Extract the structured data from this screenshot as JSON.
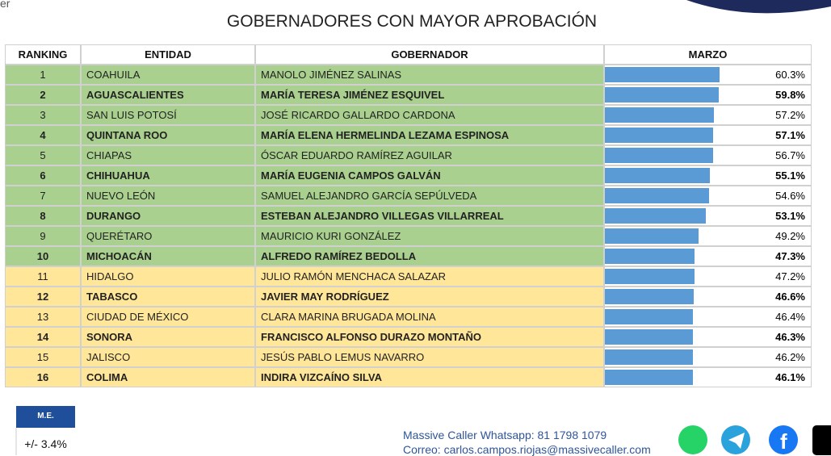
{
  "fragment": "er",
  "title": "GOBERNADORES CON MAYOR APROBACIÓN",
  "table": {
    "headers": [
      "RANKING",
      "ENTIDAD",
      "GOBERNADOR",
      "MARZO"
    ],
    "rows": [
      [
        "1",
        "COAHUILA",
        "MANOLO JIMÉNEZ SALINAS"
      ],
      [
        "2",
        "AGUASCALIENTES",
        "MARÍA TERESA JIMÉNEZ ESQUIVEL"
      ],
      [
        "3",
        "SAN LUIS POTOSÍ",
        "JOSÉ RICARDO GALLARDO CARDONA"
      ],
      [
        "4",
        "QUINTANA ROO",
        "MARÍA ELENA HERMELINDA LEZAMA ESPINOSA"
      ],
      [
        "5",
        "CHIAPAS",
        "ÓSCAR EDUARDO RAMÍREZ AGUILAR"
      ],
      [
        "6",
        "CHIHUAHUA",
        "MARÍA EUGENIA CAMPOS GALVÁN"
      ],
      [
        "7",
        "NUEVO LEÓN",
        "SAMUEL ALEJANDRO GARCÍA SEPÚLVEDA"
      ],
      [
        "8",
        "DURANGO",
        "ESTEBAN ALEJANDRO VILLEGAS VILLARREAL"
      ],
      [
        "9",
        "QUERÉTARO",
        "MAURICIO KURI GONZÁLEZ"
      ],
      [
        "10",
        "MICHOACÁN",
        "ALFREDO RAMÍREZ BEDOLLA"
      ],
      [
        "11",
        "HIDALGO",
        "JULIO RAMÓN MENCHACA SALAZAR"
      ],
      [
        "12",
        "TABASCO",
        "JAVIER MAY RODRÍGUEZ"
      ],
      [
        "13",
        "CIUDAD DE MÉXICO",
        "CLARA MARINA BRUGADA MOLINA"
      ],
      [
        "14",
        "SONORA",
        "FRANCISCO ALFONSO DURAZO MONTAÑO"
      ],
      [
        "15",
        "JALISCO",
        "JESÚS PABLO LEMUS NAVARRO"
      ],
      [
        "16",
        "COLIMA",
        "INDIRA VIZCAÍNO SILVA"
      ]
    ],
    "marzo": {
      "values": [
        60.3,
        59.8,
        57.2,
        57.1,
        56.7,
        55.1,
        54.6,
        53.1,
        49.2,
        47.3,
        47.2,
        46.6,
        46.4,
        46.3,
        46.2,
        46.1
      ],
      "value_labels": [
        "60.3%",
        "59.8%",
        "57.2%",
        "57.1%",
        "56.7%",
        "55.1%",
        "54.6%",
        "53.1%",
        "49.2%",
        "47.3%",
        "47.2%",
        "46.6%",
        "46.4%",
        "46.3%",
        "46.2%",
        "46.1%"
      ]
    }
  },
  "margin": {
    "label": "M.E.",
    "value": "+/- 3.4%"
  },
  "footer": {
    "phone": "Massive Caller Whatsapp: 81 1798 1079",
    "email": "Correo: carlos.campos.riojas@massivecaller.com"
  }
}
